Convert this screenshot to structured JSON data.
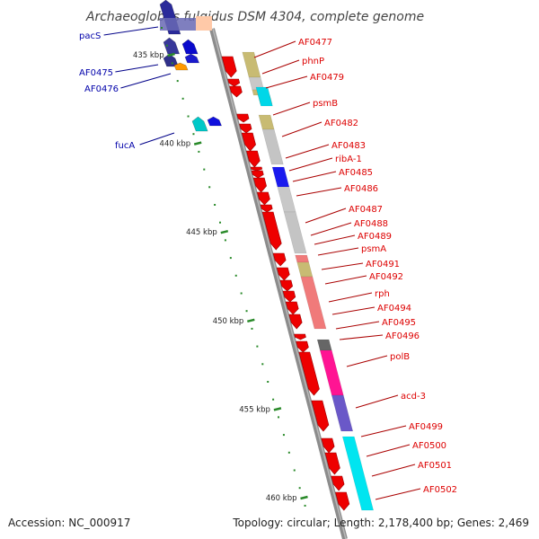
{
  "title": "Archaeoglobus fulgidus DSM 4304, complete genome",
  "footer": {
    "accession": "Accession: NC_000917",
    "summary": "Topology: circular; Length: 2,178,400 bp; Genes: 2,469"
  },
  "colors": {
    "backbone": "#8c8c8c",
    "forward_label": "#dd0000",
    "reverse_label": "#0000aa",
    "tick": "#2a8a2a"
  },
  "ticks": [
    {
      "kbp": 435,
      "label": "435 kbp"
    },
    {
      "kbp": 440,
      "label": "440 kbp"
    },
    {
      "kbp": 445,
      "label": "445 kbp"
    },
    {
      "kbp": 450,
      "label": "450 kbp"
    },
    {
      "kbp": 455,
      "label": "455 kbp"
    },
    {
      "kbp": 460,
      "label": "460 kbp"
    }
  ],
  "reverse_labels": [
    "pacS",
    "AF0475",
    "AF0476",
    "fucA"
  ],
  "forward_labels": [
    "AF0477",
    "phnP",
    "AF0479",
    "psmB",
    "AF0482",
    "AF0483",
    "ribA-1",
    "AF0485",
    "AF0486",
    "AF0487",
    "AF0488",
    "AF0489",
    "psmA",
    "AF0491",
    "AF0492",
    "rph",
    "AF0494",
    "AF0495",
    "AF0496",
    "polB",
    "acd-3",
    "AF0499",
    "AF0500",
    "AF0501",
    "AF0502"
  ]
}
